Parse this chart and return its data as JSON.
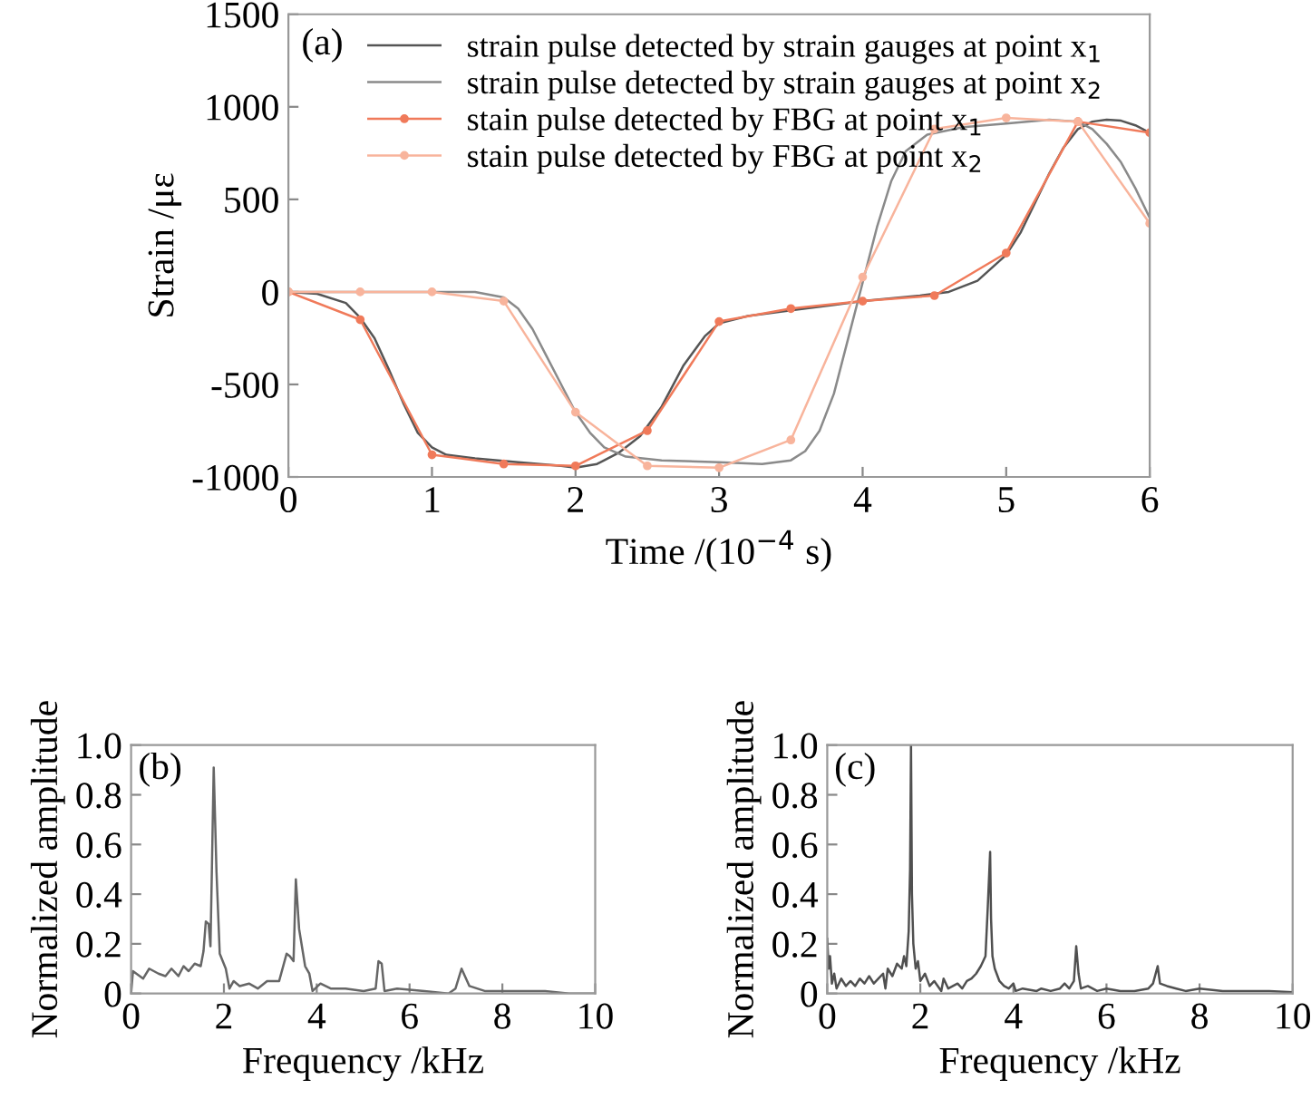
{
  "chart_data": [
    {
      "type": "line",
      "annotations": [
        "(a)"
      ],
      "xlabel": "Time /(10$^{−4}$ s)",
      "ylabel": "Strain /με",
      "xlim": [
        0,
        6
      ],
      "xticks": [
        0,
        1,
        2,
        3,
        4,
        5,
        6
      ],
      "ylim": [
        -1000,
        1500
      ],
      "yticks": [
        -1000,
        -500,
        0,
        500,
        1000,
        1500
      ],
      "legend": "top left",
      "grid": false,
      "series": [
        {
          "name": "strain pulse detected by strain gauges at point x$_{1}$",
          "color": "#555555",
          "marker": "none",
          "x": [
            0,
            0.2,
            0.4,
            0.5,
            0.6,
            0.7,
            0.8,
            0.9,
            1.0,
            1.1,
            1.3,
            1.6,
            1.9,
            2.0,
            2.15,
            2.3,
            2.45,
            2.6,
            2.75,
            2.9,
            3.0,
            3.2,
            3.5,
            3.8,
            4.0,
            4.4,
            4.6,
            4.8,
            5.0,
            5.1,
            5.2,
            5.3,
            5.4,
            5.5,
            5.6,
            5.7,
            5.8,
            5.9,
            6.0
          ],
          "values": [
            0,
            -10,
            -60,
            -140,
            -250,
            -420,
            -600,
            -760,
            -840,
            -880,
            -900,
            -920,
            -940,
            -950,
            -930,
            -870,
            -780,
            -620,
            -400,
            -240,
            -170,
            -130,
            -100,
            -70,
            -50,
            -20,
            0,
            60,
            200,
            320,
            480,
            640,
            780,
            880,
            920,
            930,
            925,
            900,
            860
          ]
        },
        {
          "name": "strain pulse detected by strain gauges at point x$_{2}$",
          "color": "#8a8a8a",
          "marker": "none",
          "x": [
            0,
            0.5,
            1.0,
            1.3,
            1.5,
            1.6,
            1.7,
            1.8,
            1.9,
            2.0,
            2.1,
            2.2,
            2.35,
            2.6,
            3.0,
            3.3,
            3.5,
            3.6,
            3.7,
            3.8,
            3.9,
            4.0,
            4.1,
            4.2,
            4.3,
            4.45,
            4.7,
            5.0,
            5.3,
            5.5,
            5.6,
            5.7,
            5.8,
            5.9,
            6.0
          ],
          "values": [
            0,
            0,
            0,
            0,
            -30,
            -90,
            -200,
            -350,
            -500,
            -650,
            -760,
            -840,
            -890,
            -910,
            -920,
            -930,
            -910,
            -860,
            -750,
            -550,
            -250,
            50,
            350,
            600,
            760,
            850,
            890,
            910,
            930,
            920,
            880,
            800,
            700,
            560,
            400
          ]
        },
        {
          "name": "stain pulse detected by FBG at point x$_{1}$",
          "color": "#f07a5a",
          "marker": "circle",
          "x": [
            0,
            0.5,
            1.0,
            1.5,
            2.0,
            2.5,
            3.0,
            3.5,
            4.0,
            4.5,
            5.0,
            5.5,
            6.0
          ],
          "values": [
            0,
            -150,
            -880,
            -930,
            -940,
            -750,
            -160,
            -90,
            -50,
            -20,
            210,
            920,
            860
          ]
        },
        {
          "name": "stain pulse detected by FBG at point x$_{2}$",
          "color": "#f8b49c",
          "marker": "circle",
          "x": [
            0,
            0.5,
            1.0,
            1.5,
            2.0,
            2.5,
            3.0,
            3.5,
            4.0,
            4.5,
            5.0,
            5.5,
            6.0
          ],
          "values": [
            0,
            0,
            0,
            -50,
            -650,
            -940,
            -950,
            -800,
            80,
            880,
            940,
            920,
            370
          ]
        }
      ]
    },
    {
      "type": "line",
      "annotations": [
        "(b)"
      ],
      "xlabel": "Frequency /kHz",
      "ylabel": "Normalized amplitude",
      "xlim": [
        0,
        10
      ],
      "xticks": [
        0,
        2,
        4,
        6,
        8,
        10
      ],
      "ylim": [
        0,
        1
      ],
      "yticks": [
        0,
        0.2,
        0.4,
        0.6,
        0.8,
        {
          "value": 1,
          "label": "1.0"
        }
      ],
      "grid": false,
      "series": [
        {
          "color": "#666666",
          "marker": "none",
          "x": [
            0,
            0.04,
            0.26,
            0.39,
            0.59,
            0.74,
            0.87,
            1.02,
            1.13,
            1.24,
            1.37,
            1.5,
            1.56,
            1.61,
            1.67,
            1.71,
            1.74,
            1.78,
            1.84,
            1.91,
            2.04,
            2.12,
            2.21,
            2.34,
            2.54,
            2.73,
            2.93,
            3.19,
            3.35,
            3.42,
            3.5,
            3.55,
            3.62,
            3.75,
            3.84,
            3.91,
            4.08,
            4.3,
            4.62,
            5.01,
            5.27,
            5.33,
            5.4,
            5.46,
            5.73,
            6.32,
            6.84,
            6.99,
            7.12,
            7.29,
            7.62,
            8.27,
            8.92,
            9.44,
            10
          ],
          "values": [
            0,
            0.09,
            0.06,
            0.1,
            0.08,
            0.07,
            0.1,
            0.07,
            0.11,
            0.09,
            0.12,
            0.11,
            0.17,
            0.29,
            0.28,
            0.19,
            0.49,
            0.91,
            0.49,
            0.16,
            0.1,
            0.02,
            0.05,
            0.03,
            0.04,
            0.02,
            0.05,
            0.05,
            0.16,
            0.15,
            0.13,
            0.46,
            0.26,
            0.11,
            0.08,
            0.01,
            0.04,
            0.02,
            0.02,
            0.01,
            0.02,
            0.13,
            0.12,
            0.01,
            0.02,
            0.01,
            0,
            0.02,
            0.1,
            0.03,
            0.01,
            0.01,
            0.01,
            0,
            0
          ]
        }
      ]
    },
    {
      "type": "line",
      "annotations": [
        "(c)"
      ],
      "xlabel": "Frequency /kHz",
      "ylabel": "Normalized amplitude",
      "xlim": [
        0,
        10
      ],
      "xticks": [
        0,
        2,
        4,
        6,
        8,
        10
      ],
      "ylim": [
        0,
        1
      ],
      "yticks": [
        0,
        0.2,
        0.4,
        0.6,
        0.8,
        {
          "value": 1,
          "label": "1.0"
        }
      ],
      "grid": false,
      "series": [
        {
          "color": "#505050",
          "marker": "none",
          "x": [
            0,
            0.03,
            0.06,
            0.1,
            0.15,
            0.2,
            0.3,
            0.4,
            0.5,
            0.6,
            0.7,
            0.8,
            0.9,
            1.0,
            1.1,
            1.2,
            1.25,
            1.3,
            1.4,
            1.5,
            1.6,
            1.65,
            1.7,
            1.75,
            1.78,
            1.8,
            1.82,
            1.85,
            1.9,
            1.95,
            2.0,
            2.1,
            2.2,
            2.3,
            2.45,
            2.5,
            2.6,
            2.8,
            2.9,
            3.0,
            3.1,
            3.2,
            3.3,
            3.4,
            3.45,
            3.5,
            3.52,
            3.55,
            3.6,
            3.7,
            3.8,
            3.9,
            4.0,
            4.05,
            4.2,
            4.5,
            4.6,
            4.8,
            5.0,
            5.1,
            5.2,
            5.3,
            5.35,
            5.4,
            5.45,
            5.6,
            5.8,
            6.0,
            6.3,
            6.6,
            6.9,
            7.0,
            7.1,
            7.15,
            7.3,
            7.5,
            7.7,
            8.0,
            8.5,
            9.0,
            9.5,
            10
          ],
          "values": [
            0.22,
            0.1,
            0.15,
            0.04,
            0.08,
            0.02,
            0.06,
            0.03,
            0.05,
            0.03,
            0.06,
            0.04,
            0.07,
            0.04,
            0.06,
            0.08,
            0.02,
            0.1,
            0.07,
            0.12,
            0.1,
            0.15,
            0.11,
            0.25,
            0.5,
            1.0,
            0.4,
            0.2,
            0.1,
            0.13,
            0.05,
            0.08,
            0.03,
            0.05,
            0.01,
            0.06,
            0.02,
            0.04,
            0.02,
            0.05,
            0.06,
            0.08,
            0.11,
            0.15,
            0.35,
            0.57,
            0.3,
            0.15,
            0.1,
            0.05,
            0.03,
            0.02,
            0.04,
            0.01,
            0.02,
            0.01,
            0.02,
            0.01,
            0.02,
            0.04,
            0.02,
            0.05,
            0.19,
            0.08,
            0.02,
            0.03,
            0.01,
            0.02,
            0.01,
            0.01,
            0.02,
            0.04,
            0.11,
            0.04,
            0.03,
            0.02,
            0.01,
            0.02,
            0.01,
            0.01,
            0.01,
            0.005
          ]
        }
      ]
    }
  ]
}
